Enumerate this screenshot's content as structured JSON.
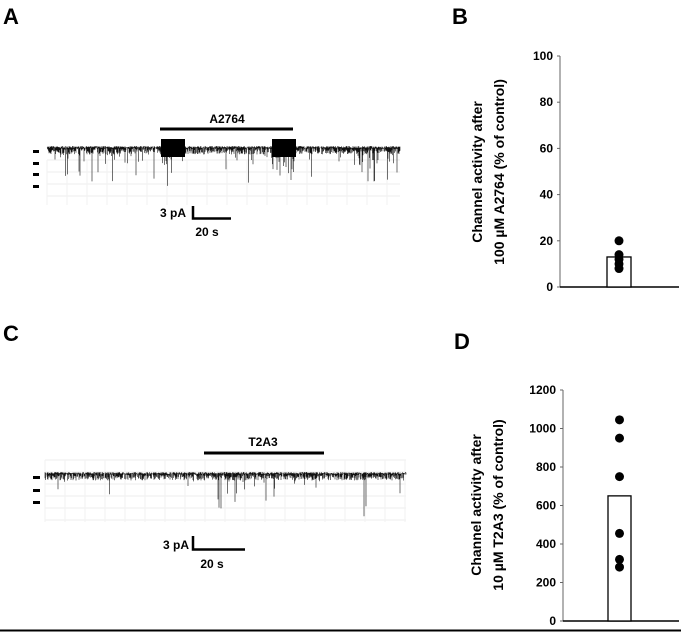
{
  "panels": {
    "a": "A",
    "b": "B",
    "c": "C",
    "d": "D"
  },
  "trace_a": {
    "drug_label": "A2764",
    "scale_current": "3 pA",
    "scale_time": "20 s"
  },
  "trace_c": {
    "drug_label": "T2A3",
    "scale_current": "3 pA",
    "scale_time": "20 s"
  },
  "chart_data": [
    {
      "type": "bar",
      "panel": "B",
      "ylabel_line1": "Channel activity after",
      "ylabel_line2": "100 µM A2764 (% of control)",
      "ylim": [
        0,
        100
      ],
      "yticks": [
        "0",
        "20",
        "40",
        "60",
        "80",
        "100"
      ],
      "bar_value": 13,
      "points": [
        20,
        14,
        12,
        10,
        8
      ]
    },
    {
      "type": "bar",
      "panel": "D",
      "ylabel_line1": "Channel activity after",
      "ylabel_line2": "10 µM T2A3 (% of control)",
      "ylim": [
        0,
        1200
      ],
      "yticks": [
        "0",
        "200",
        "400",
        "600",
        "800",
        "1000",
        "1200"
      ],
      "bar_value": 650,
      "points": [
        1045,
        950,
        750,
        455,
        320,
        280
      ]
    }
  ]
}
